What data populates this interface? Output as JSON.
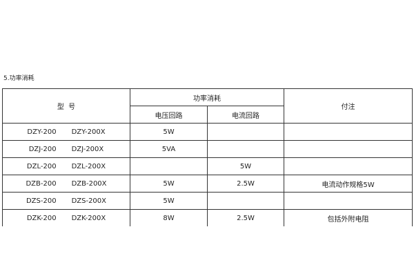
{
  "section_title": "5.功率消耗",
  "table": {
    "header": {
      "model": "型  号",
      "power": "功率消耗",
      "voltage_circuit": "电压回路",
      "current_circuit": "电流回路",
      "note": "付注"
    },
    "rows": [
      {
        "model_a": "DZY-200",
        "model_b": "DZY-200X",
        "voltage": "5W",
        "current": "",
        "note": ""
      },
      {
        "model_a": "DZJ-200",
        "model_b": "DZJ-200X",
        "voltage": "5VA",
        "current": "",
        "note": ""
      },
      {
        "model_a": "DZL-200",
        "model_b": "DZL-200X",
        "voltage": "",
        "current": "5W",
        "note": ""
      },
      {
        "model_a": "DZB-200",
        "model_b": "DZB-200X",
        "voltage": "5W",
        "current": "2.5W",
        "note": "电流动作规格5W"
      },
      {
        "model_a": "DZS-200",
        "model_b": "DZS-200X",
        "voltage": "5W",
        "current": "",
        "note": ""
      },
      {
        "model_a": "DZK-200",
        "model_b": "DZK-200X",
        "voltage": "8W",
        "current": "2.5W",
        "note": "包括外附电阻"
      }
    ]
  }
}
